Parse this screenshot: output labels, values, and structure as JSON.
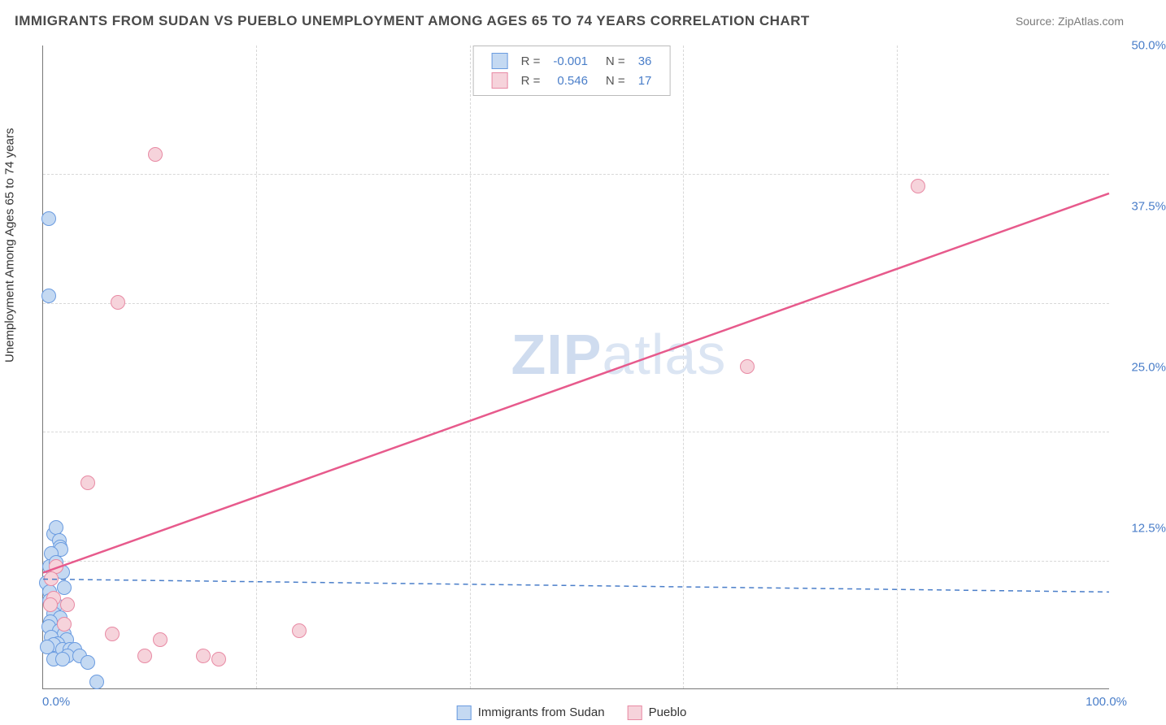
{
  "title": "IMMIGRANTS FROM SUDAN VS PUEBLO UNEMPLOYMENT AMONG AGES 65 TO 74 YEARS CORRELATION CHART",
  "source": "Source: ZipAtlas.com",
  "ylabel": "Unemployment Among Ages 65 to 74 years",
  "watermark_a": "ZIP",
  "watermark_b": "atlas",
  "chart": {
    "type": "scatter",
    "xlim": [
      0,
      100
    ],
    "ylim": [
      0,
      50
    ],
    "x_ticks": [
      0,
      100
    ],
    "x_tick_labels": [
      "0.0%",
      "100.0%"
    ],
    "y_ticks": [
      12.5,
      25.0,
      37.5,
      50.0
    ],
    "y_tick_labels": [
      "12.5%",
      "25.0%",
      "37.5%",
      "50.0%"
    ],
    "x_gridlines": [
      20,
      40,
      60,
      80
    ],
    "y_gridlines": [
      10,
      20,
      30,
      40
    ],
    "background_color": "#ffffff",
    "grid_color": "#d8d8d8",
    "axis_color": "#777777",
    "tick_label_color": "#4a7ec9",
    "marker_radius": 9
  },
  "series": [
    {
      "name": "Immigrants from Sudan",
      "fill": "#c4d9f2",
      "stroke": "#6a9be0",
      "line_color": "#4a7ec9",
      "line_dash": "6 5",
      "line_width": 1.5,
      "R": "-0.001",
      "N": "36",
      "trend": {
        "x1": 0,
        "y1": 8.5,
        "x2": 100,
        "y2": 7.5
      },
      "points": [
        [
          0.5,
          36.5
        ],
        [
          0.5,
          30.5
        ],
        [
          1.0,
          12.0
        ],
        [
          1.2,
          12.5
        ],
        [
          1.5,
          11.5
        ],
        [
          1.6,
          11.0
        ],
        [
          1.7,
          10.8
        ],
        [
          0.8,
          10.5
        ],
        [
          0.6,
          9.5
        ],
        [
          1.2,
          9.8
        ],
        [
          1.8,
          9.0
        ],
        [
          0.3,
          8.2
        ],
        [
          2.0,
          7.8
        ],
        [
          0.6,
          7.5
        ],
        [
          0.6,
          6.8
        ],
        [
          1.2,
          6.5
        ],
        [
          1.0,
          5.8
        ],
        [
          1.6,
          5.5
        ],
        [
          0.7,
          5.2
        ],
        [
          0.5,
          4.8
        ],
        [
          1.5,
          4.5
        ],
        [
          2.0,
          4.2
        ],
        [
          0.8,
          4.0
        ],
        [
          2.2,
          3.8
        ],
        [
          1.4,
          3.5
        ],
        [
          1.0,
          3.4
        ],
        [
          0.4,
          3.2
        ],
        [
          1.8,
          3.0
        ],
        [
          2.5,
          3.0
        ],
        [
          3.0,
          3.0
        ],
        [
          2.3,
          2.5
        ],
        [
          3.4,
          2.5
        ],
        [
          1.0,
          2.3
        ],
        [
          4.2,
          2.0
        ],
        [
          1.8,
          2.3
        ],
        [
          5.0,
          0.5
        ]
      ]
    },
    {
      "name": "Pueblo",
      "fill": "#f6d3db",
      "stroke": "#e88aa4",
      "line_color": "#e75a8c",
      "line_dash": "none",
      "line_width": 2.5,
      "R": "0.546",
      "N": "17",
      "trend": {
        "x1": 0,
        "y1": 9.0,
        "x2": 100,
        "y2": 38.5
      },
      "points": [
        [
          10.5,
          41.5
        ],
        [
          82.0,
          39.0
        ],
        [
          66.0,
          25.0
        ],
        [
          7.0,
          30.0
        ],
        [
          4.2,
          16.0
        ],
        [
          1.2,
          9.5
        ],
        [
          0.8,
          8.5
        ],
        [
          1.0,
          7.0
        ],
        [
          2.3,
          6.5
        ],
        [
          0.7,
          6.5
        ],
        [
          2.0,
          5.0
        ],
        [
          6.5,
          4.2
        ],
        [
          24.0,
          4.5
        ],
        [
          11.0,
          3.8
        ],
        [
          9.5,
          2.5
        ],
        [
          15.0,
          2.5
        ],
        [
          16.5,
          2.3
        ]
      ]
    }
  ],
  "legend_top": {
    "r_label": "R =",
    "n_label": "N ="
  },
  "legend_bottom": [
    "Immigrants from Sudan",
    "Pueblo"
  ]
}
